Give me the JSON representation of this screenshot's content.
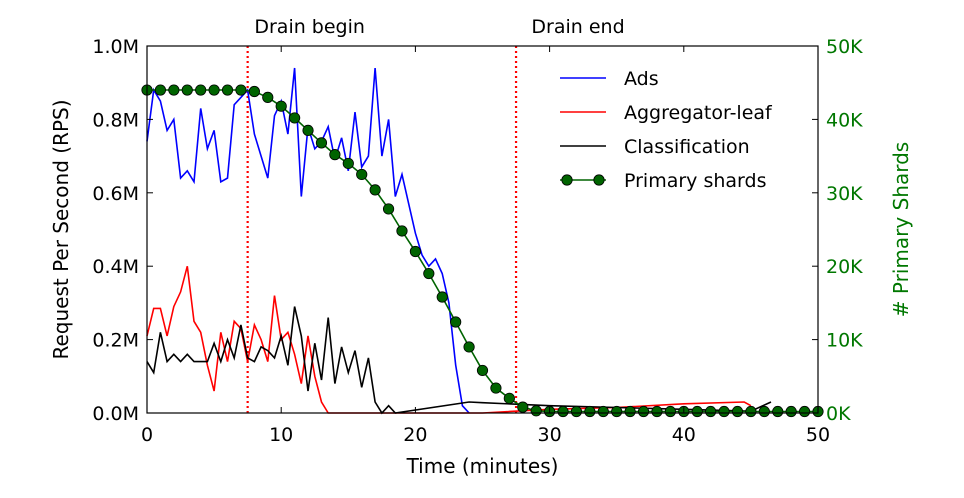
{
  "chart_data": {
    "type": "line",
    "title": "",
    "xlabel": "Time (minutes)",
    "ylabel": "Request Per Second (RPS)",
    "y2label": "# Primary Shards",
    "xlim": [
      0,
      50
    ],
    "ylim": [
      0,
      1000000
    ],
    "y2lim": [
      0,
      50000
    ],
    "xticks": [
      0,
      10,
      20,
      30,
      40,
      50
    ],
    "xtick_labels": [
      "0",
      "10",
      "20",
      "30",
      "40",
      "50"
    ],
    "yticks": [
      0,
      200000,
      400000,
      600000,
      800000,
      1000000
    ],
    "ytick_labels": [
      "0.0M",
      "0.2M",
      "0.4M",
      "0.6M",
      "0.8M",
      "1.0M"
    ],
    "y2ticks": [
      0,
      10000,
      20000,
      30000,
      40000,
      50000
    ],
    "y2tick_labels": [
      "0K",
      "10K",
      "20K",
      "30K",
      "40K",
      "50K"
    ],
    "grid": false,
    "legend_position": "top-right",
    "annotations": [
      {
        "text": "Drain begin",
        "x": 7.5
      },
      {
        "text": "Drain end",
        "x": 27.5
      }
    ],
    "colors": {
      "ads": "#0000ff",
      "aggregator": "#ff0000",
      "classification": "#000000",
      "shards": "#006400",
      "drain": "#ff0000",
      "right_axis": "#007700"
    },
    "series": [
      {
        "name": "Ads",
        "axis": "left",
        "x": [
          0,
          0.5,
          1,
          1.5,
          2,
          2.5,
          3,
          3.5,
          4,
          4.5,
          5,
          5.5,
          6,
          6.5,
          7,
          7.5,
          8,
          8.5,
          9,
          9.5,
          10,
          10.5,
          11,
          11.5,
          12,
          12.5,
          13,
          13.5,
          14,
          14.5,
          15,
          15.5,
          16,
          16.5,
          17,
          17.5,
          18,
          18.5,
          19,
          19.5,
          20,
          20.5,
          21,
          21.5,
          22,
          22.5,
          23,
          23.5,
          24
        ],
        "y": [
          740000,
          880000,
          850000,
          770000,
          800000,
          640000,
          660000,
          630000,
          830000,
          720000,
          770000,
          630000,
          640000,
          840000,
          860000,
          880000,
          760000,
          700000,
          640000,
          810000,
          850000,
          760000,
          940000,
          590000,
          780000,
          720000,
          740000,
          780000,
          690000,
          750000,
          660000,
          820000,
          670000,
          700000,
          940000,
          700000,
          800000,
          590000,
          650000,
          570000,
          490000,
          430000,
          400000,
          420000,
          380000,
          300000,
          130000,
          20000,
          0
        ]
      },
      {
        "name": "Aggregator-leaf",
        "axis": "left",
        "x": [
          0,
          0.5,
          1,
          1.5,
          2,
          2.5,
          3,
          3.5,
          4,
          4.5,
          5,
          5.5,
          6,
          6.5,
          7,
          7.5,
          8,
          8.5,
          9,
          9.5,
          10,
          10.5,
          11,
          11.5,
          12,
          12.5,
          13,
          13.5,
          25,
          30,
          35,
          40,
          44.5,
          45
        ],
        "y": [
          210000,
          285000,
          285000,
          210000,
          290000,
          330000,
          400000,
          250000,
          220000,
          130000,
          60000,
          220000,
          140000,
          250000,
          230000,
          140000,
          240000,
          200000,
          140000,
          320000,
          200000,
          220000,
          160000,
          80000,
          210000,
          100000,
          30000,
          0,
          0,
          10000,
          15000,
          25000,
          30000,
          20000
        ]
      },
      {
        "name": "Classification",
        "axis": "left",
        "x": [
          0,
          0.5,
          1,
          1.5,
          2,
          2.5,
          3,
          3.5,
          4,
          4.5,
          5,
          5.5,
          6,
          6.5,
          7,
          7.5,
          8,
          8.5,
          9,
          9.5,
          10,
          10.5,
          11,
          11.5,
          12,
          12.5,
          13,
          13.5,
          14,
          14.5,
          15,
          15.5,
          16,
          16.5,
          17,
          17.5,
          18,
          18.5,
          24,
          25,
          30,
          35,
          40,
          45,
          46.5
        ],
        "y": [
          140000,
          110000,
          220000,
          140000,
          160000,
          140000,
          160000,
          140000,
          140000,
          140000,
          190000,
          140000,
          200000,
          150000,
          240000,
          150000,
          140000,
          180000,
          170000,
          150000,
          210000,
          130000,
          290000,
          210000,
          60000,
          190000,
          90000,
          260000,
          80000,
          180000,
          110000,
          170000,
          70000,
          150000,
          30000,
          0,
          20000,
          0,
          30000,
          28000,
          20000,
          15000,
          10000,
          5000,
          30000
        ]
      },
      {
        "name": "Primary shards",
        "axis": "right",
        "x": [
          0,
          1,
          2,
          3,
          4,
          5,
          6,
          7,
          8,
          9,
          10,
          11,
          12,
          13,
          14,
          15,
          16,
          17,
          18,
          19,
          20,
          21,
          22,
          23,
          24,
          25,
          26,
          27,
          28,
          29,
          30,
          31,
          32,
          33,
          34,
          35,
          36,
          37,
          38,
          39,
          40,
          41,
          42,
          43,
          44,
          45,
          46,
          47,
          48,
          49,
          50
        ],
        "y": [
          44000,
          44000,
          44000,
          44000,
          44000,
          44000,
          44000,
          44000,
          43800,
          43000,
          41800,
          40200,
          38500,
          36800,
          35200,
          34000,
          32500,
          30400,
          27800,
          24800,
          22000,
          19000,
          15800,
          12400,
          9000,
          5800,
          3400,
          2000,
          800,
          300,
          200,
          200,
          200,
          200,
          200,
          200,
          200,
          200,
          200,
          200,
          200,
          200,
          200,
          200,
          200,
          200,
          200,
          200,
          200,
          200,
          200
        ]
      }
    ]
  }
}
